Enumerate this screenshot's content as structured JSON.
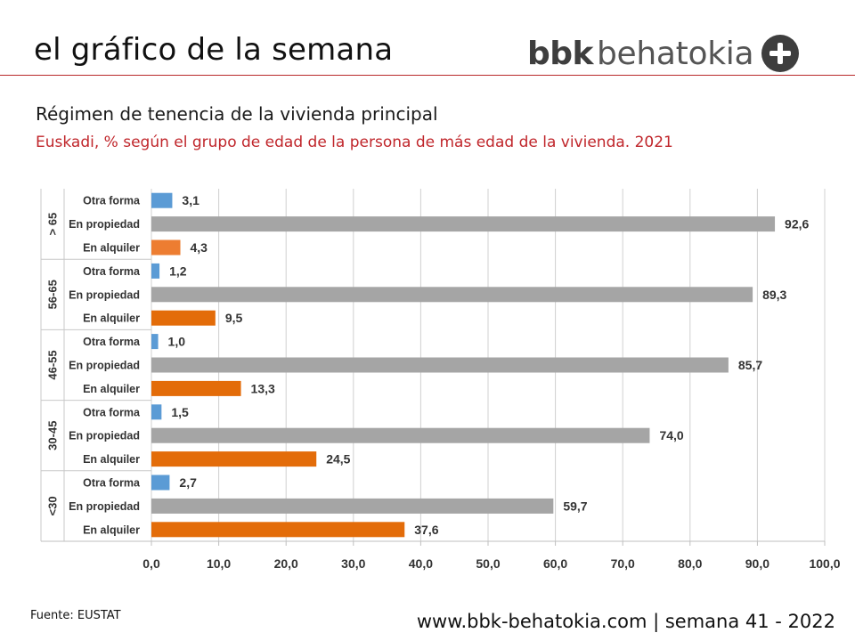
{
  "header": {
    "title": "el gráfico de la semana",
    "logo_bold": "bbk",
    "logo_light": "behatokia",
    "logo_icon": "plus-circle-icon"
  },
  "subtitle": "Régimen de tenencia de la vivienda principal",
  "subtitle2": "Euskadi, % según el grupo de edad de la persona de más edad de la vivienda. 2021",
  "source": "Fuente: EUSTAT",
  "footer": "www.bbk-behatokia.com | semana 41 - 2022",
  "colors": {
    "otra": "#5b9bd5",
    "propiedad": "#a5a5a5",
    "alquiler_old": "#ed7d31",
    "alquiler": "#e36c09",
    "accent": "#c0262b",
    "logo": "#3e3e3e"
  },
  "chart_data": {
    "type": "bar",
    "orientation": "horizontal",
    "title": "Régimen de tenencia de la vivienda principal",
    "xlim": [
      0,
      100
    ],
    "xticks": [
      "0,0",
      "10,0",
      "20,0",
      "30,0",
      "40,0",
      "50,0",
      "60,0",
      "70,0",
      "80,0",
      "90,0",
      "100,0"
    ],
    "grid": true,
    "groups": [
      {
        "name": "> 65",
        "bars": [
          {
            "label": "Otra forma",
            "value": 3.1,
            "text": "3,1",
            "kind": "otra"
          },
          {
            "label": "En propiedad",
            "value": 92.6,
            "text": "92,6",
            "kind": "propiedad"
          },
          {
            "label": "En alquiler",
            "value": 4.3,
            "text": "4,3",
            "kind": "alquiler_old"
          }
        ]
      },
      {
        "name": "56-65",
        "bars": [
          {
            "label": "Otra forma",
            "value": 1.2,
            "text": "1,2",
            "kind": "otra"
          },
          {
            "label": "En propiedad",
            "value": 89.3,
            "text": "89,3",
            "kind": "propiedad"
          },
          {
            "label": "En alquiler",
            "value": 9.5,
            "text": "9,5",
            "kind": "alquiler"
          }
        ]
      },
      {
        "name": "46-55",
        "bars": [
          {
            "label": "Otra forma",
            "value": 1.0,
            "text": "1,0",
            "kind": "otra"
          },
          {
            "label": "En propiedad",
            "value": 85.7,
            "text": "85,7",
            "kind": "propiedad"
          },
          {
            "label": "En alquiler",
            "value": 13.3,
            "text": "13,3",
            "kind": "alquiler"
          }
        ]
      },
      {
        "name": "30-45",
        "bars": [
          {
            "label": "Otra forma",
            "value": 1.5,
            "text": "1,5",
            "kind": "otra"
          },
          {
            "label": "En propiedad",
            "value": 74.0,
            "text": "74,0",
            "kind": "propiedad"
          },
          {
            "label": "En alquiler",
            "value": 24.5,
            "text": "24,5",
            "kind": "alquiler"
          }
        ]
      },
      {
        "name": "<30",
        "bars": [
          {
            "label": "Otra forma",
            "value": 2.7,
            "text": "2,7",
            "kind": "otra"
          },
          {
            "label": "En propiedad",
            "value": 59.7,
            "text": "59,7",
            "kind": "propiedad"
          },
          {
            "label": "En alquiler",
            "value": 37.6,
            "text": "37,6",
            "kind": "alquiler"
          }
        ]
      }
    ]
  }
}
